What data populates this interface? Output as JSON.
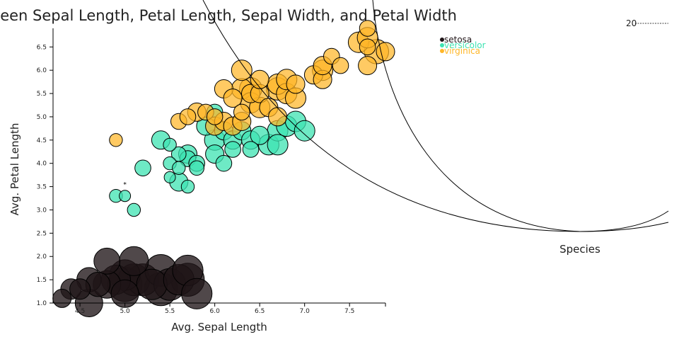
{
  "chart_data": {
    "type": "scatter",
    "title": "Correlation Between Sepal Length, Petal Length, Sepal Width, and Petal Width",
    "xlabel": "Avg. Sepal Length",
    "ylabel": "Avg. Petal Length",
    "color_legend_title": "Species",
    "size_legend_value": "20",
    "xlim": [
      4.2,
      7.9
    ],
    "ylim": [
      1.0,
      6.9
    ],
    "xticks": [
      "4.5",
      "5.0",
      "5.5",
      "6.0",
      "6.5",
      "7.0",
      "7.5"
    ],
    "yticks": [
      "1.0",
      "1.5",
      "2.0",
      "2.5",
      "3.0",
      "3.5",
      "4.0",
      "4.5",
      "5.0",
      "5.5",
      "6.0",
      "6.5"
    ],
    "legend_position": "top-right",
    "annotation": "*",
    "annotation_at": [
      5.0,
      3.5
    ],
    "point_format": "[sepal_length, petal_length, size]",
    "series": [
      {
        "name": "setosa",
        "color": "#1f1417",
        "opacity": 0.78,
        "points": [
          [
            4.3,
            1.1,
            4
          ],
          [
            4.4,
            1.3,
            5
          ],
          [
            4.5,
            1.3,
            5
          ],
          [
            4.6,
            1.5,
            7
          ],
          [
            4.6,
            1.0,
            9
          ],
          [
            4.7,
            1.4,
            7
          ],
          [
            4.8,
            1.9,
            8
          ],
          [
            4.8,
            1.4,
            9
          ],
          [
            4.9,
            1.5,
            10
          ],
          [
            5.0,
            1.6,
            11
          ],
          [
            5.0,
            1.2,
            9
          ],
          [
            5.0,
            1.4,
            14
          ],
          [
            5.1,
            1.5,
            12
          ],
          [
            5.1,
            1.9,
            10
          ],
          [
            5.2,
            1.5,
            12
          ],
          [
            5.3,
            1.4,
            11
          ],
          [
            5.4,
            1.7,
            12
          ],
          [
            5.4,
            1.3,
            13
          ],
          [
            5.5,
            1.4,
            12
          ],
          [
            5.6,
            1.5,
            11
          ],
          [
            5.7,
            1.7,
            11
          ],
          [
            5.7,
            1.5,
            13
          ],
          [
            5.8,
            1.2,
            11
          ]
        ]
      },
      {
        "name": "versicolor",
        "color": "#3de3b1",
        "opacity": 0.75,
        "points": [
          [
            4.9,
            3.3,
            2
          ],
          [
            5.0,
            3.3,
            1.5
          ],
          [
            5.1,
            3.0,
            2
          ],
          [
            5.2,
            3.9,
            3
          ],
          [
            5.4,
            4.5,
            4
          ],
          [
            5.5,
            4.0,
            2
          ],
          [
            5.5,
            3.7,
            1.5
          ],
          [
            5.5,
            4.4,
            2
          ],
          [
            5.6,
            3.6,
            4
          ],
          [
            5.6,
            4.2,
            2.5
          ],
          [
            5.6,
            3.9,
            2
          ],
          [
            5.7,
            3.5,
            2
          ],
          [
            5.7,
            4.2,
            4
          ],
          [
            5.7,
            4.1,
            3
          ],
          [
            5.8,
            4.0,
            3
          ],
          [
            5.8,
            3.9,
            2.5
          ],
          [
            5.9,
            4.8,
            4
          ],
          [
            6.0,
            4.5,
            5
          ],
          [
            6.0,
            4.2,
            4
          ],
          [
            6.0,
            5.1,
            3
          ],
          [
            6.1,
            4.7,
            4
          ],
          [
            6.1,
            4.0,
            3
          ],
          [
            6.2,
            4.5,
            4
          ],
          [
            6.2,
            4.3,
            3
          ],
          [
            6.3,
            4.7,
            4
          ],
          [
            6.4,
            4.5,
            4
          ],
          [
            6.4,
            4.3,
            3
          ],
          [
            6.5,
            4.6,
            4
          ],
          [
            6.6,
            4.4,
            5
          ],
          [
            6.7,
            4.7,
            5
          ],
          [
            6.7,
            4.4,
            5
          ],
          [
            6.8,
            4.8,
            5
          ],
          [
            6.9,
            4.9,
            5
          ],
          [
            7.0,
            4.7,
            5
          ]
        ]
      },
      {
        "name": "virginica",
        "color": "#ffb627",
        "opacity": 0.72,
        "points": [
          [
            4.9,
            4.5,
            2
          ],
          [
            5.6,
            4.9,
            3
          ],
          [
            5.7,
            5.0,
            3
          ],
          [
            5.8,
            5.1,
            4
          ],
          [
            5.9,
            5.1,
            3
          ],
          [
            6.0,
            4.8,
            4
          ],
          [
            6.0,
            5.0,
            3
          ],
          [
            6.1,
            4.9,
            4
          ],
          [
            6.1,
            5.6,
            4
          ],
          [
            6.2,
            4.8,
            4
          ],
          [
            6.2,
            5.4,
            4
          ],
          [
            6.3,
            4.9,
            4
          ],
          [
            6.3,
            5.6,
            5
          ],
          [
            6.3,
            6.0,
            5
          ],
          [
            6.3,
            5.1,
            3
          ],
          [
            6.4,
            5.3,
            5
          ],
          [
            6.4,
            5.6,
            6
          ],
          [
            6.4,
            5.5,
            4
          ],
          [
            6.5,
            5.2,
            5
          ],
          [
            6.5,
            5.5,
            4
          ],
          [
            6.5,
            5.8,
            4
          ],
          [
            6.6,
            5.2,
            4
          ],
          [
            6.7,
            5.6,
            6
          ],
          [
            6.7,
            5.7,
            5
          ],
          [
            6.7,
            5.0,
            4
          ],
          [
            6.8,
            5.5,
            5
          ],
          [
            6.8,
            5.8,
            5
          ],
          [
            6.9,
            5.4,
            5
          ],
          [
            6.9,
            5.7,
            4
          ],
          [
            7.1,
            5.9,
            4
          ],
          [
            7.2,
            6.0,
            5
          ],
          [
            7.2,
            5.8,
            4
          ],
          [
            7.2,
            6.1,
            4
          ],
          [
            7.3,
            6.3,
            3
          ],
          [
            7.4,
            6.1,
            3
          ],
          [
            7.6,
            6.6,
            5
          ],
          [
            7.7,
            6.7,
            5
          ],
          [
            7.7,
            6.9,
            3
          ],
          [
            7.7,
            6.1,
            4
          ],
          [
            7.7,
            6.5,
            3
          ],
          [
            7.8,
            6.4,
            7
          ],
          [
            7.9,
            6.4,
            4
          ]
        ]
      }
    ]
  }
}
